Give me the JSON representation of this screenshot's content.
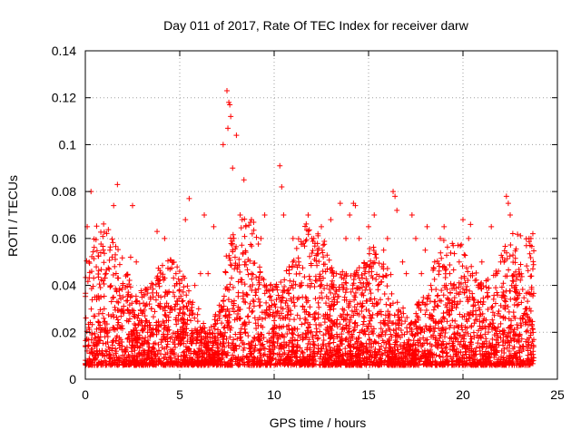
{
  "chart_data": {
    "type": "scatter",
    "title": "Day 011 of 2017, Rate Of TEC Index for receiver darw",
    "xlabel": "GPS time / hours",
    "ylabel": "ROTI / TECUs",
    "xlim": [
      0,
      25
    ],
    "ylim": [
      0,
      0.14
    ],
    "xticks": [
      0,
      5,
      10,
      15,
      20,
      25
    ],
    "yticks": [
      0,
      0.02,
      0.04,
      0.06,
      0.08,
      0.1,
      0.12,
      0.14
    ],
    "xtick_labels": [
      "0",
      "5",
      "10",
      "15",
      "20",
      "25"
    ],
    "ytick_labels": [
      "0",
      "0.02",
      "0.04",
      "0.06",
      "0.08",
      "0.1",
      "0.12",
      "0.14"
    ],
    "grid": true,
    "marker": "+",
    "color": "#ff0000",
    "series": [
      {
        "x": [
          0.1,
          0.3,
          0.5,
          0.8,
          1.0,
          1.3,
          1.5,
          1.7,
          2.0,
          2.2,
          2.5,
          2.7,
          3.0,
          3.3,
          3.5,
          3.8,
          4.0,
          4.3,
          4.5,
          4.8,
          5.0,
          5.3,
          5.5,
          5.8,
          6.0,
          6.3,
          6.5,
          6.8,
          7.0,
          7.3,
          7.5,
          7.6,
          7.7,
          7.8,
          8.0,
          8.2,
          8.5,
          8.8,
          9.0,
          9.3,
          9.5,
          9.8,
          10.0,
          10.3,
          10.5,
          10.8,
          11.0,
          11.3,
          11.5,
          11.8,
          12.0,
          12.3,
          12.5,
          12.8,
          13.0,
          13.3,
          13.5,
          13.8,
          14.0,
          14.3,
          14.5,
          14.8,
          15.0,
          15.3,
          15.5,
          15.8,
          16.0,
          16.3,
          16.5,
          16.8,
          17.0,
          17.3,
          17.5,
          17.8,
          18.0,
          18.3,
          18.5,
          18.8,
          19.0,
          19.3,
          19.5,
          19.8,
          20.0,
          20.3,
          20.5,
          20.8,
          21.0,
          21.3,
          21.5,
          21.8,
          22.0,
          22.3,
          22.5,
          22.8,
          23.0,
          23.3,
          23.5,
          23.7,
          0.2,
          1.1,
          2.4,
          4.2,
          6.1,
          7.55,
          7.65,
          8.4,
          10.4,
          12.1,
          14.2,
          16.4,
          18.1,
          20.4,
          22.4,
          23.6
        ],
        "y": [
          0.065,
          0.08,
          0.035,
          0.02,
          0.03,
          0.055,
          0.074,
          0.083,
          0.035,
          0.025,
          0.074,
          0.05,
          0.035,
          0.02,
          0.03,
          0.063,
          0.035,
          0.025,
          0.03,
          0.045,
          0.03,
          0.068,
          0.077,
          0.04,
          0.03,
          0.07,
          0.045,
          0.065,
          0.025,
          0.1,
          0.123,
          0.118,
          0.112,
          0.09,
          0.104,
          0.07,
          0.065,
          0.045,
          0.038,
          0.06,
          0.07,
          0.04,
          0.025,
          0.091,
          0.07,
          0.045,
          0.06,
          0.05,
          0.035,
          0.07,
          0.06,
          0.055,
          0.065,
          0.04,
          0.068,
          0.045,
          0.075,
          0.06,
          0.07,
          0.074,
          0.06,
          0.045,
          0.065,
          0.07,
          0.04,
          0.055,
          0.06,
          0.08,
          0.072,
          0.05,
          0.045,
          0.07,
          0.06,
          0.045,
          0.055,
          0.04,
          0.05,
          0.06,
          0.065,
          0.045,
          0.04,
          0.05,
          0.068,
          0.06,
          0.045,
          0.04,
          0.05,
          0.035,
          0.065,
          0.045,
          0.05,
          0.078,
          0.07,
          0.04,
          0.045,
          0.03,
          0.06,
          0.062,
          0.05,
          0.045,
          0.052,
          0.06,
          0.045,
          0.107,
          0.117,
          0.085,
          0.082,
          0.06,
          0.075,
          0.078,
          0.065,
          0.066,
          0.075,
          0.06
        ]
      }
    ]
  }
}
